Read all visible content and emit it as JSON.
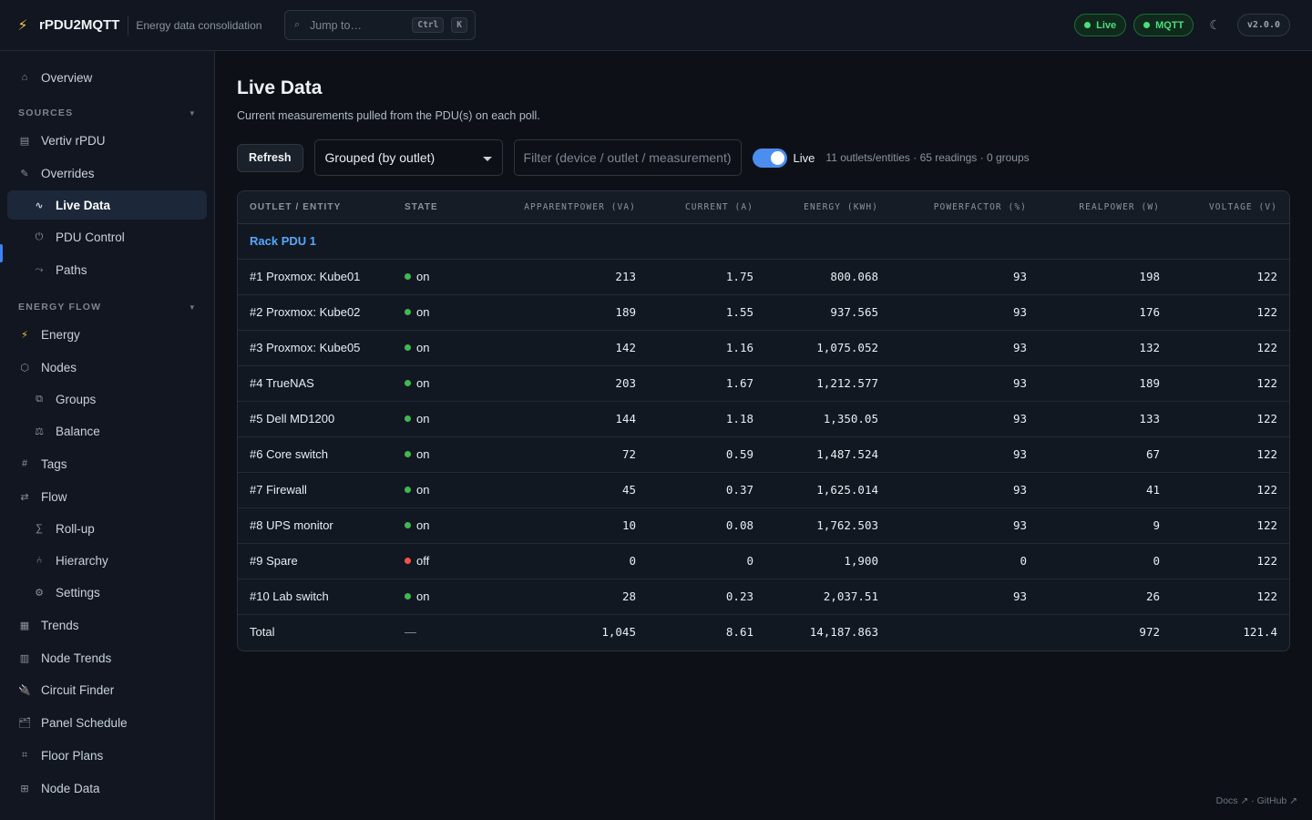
{
  "app": {
    "name": "rPDU2MQTT",
    "subtitle": "Energy data consolidation",
    "search_placeholder": "Jump to…",
    "kbd_ctrl": "Ctrl",
    "kbd_k": "K",
    "status_live": "Live",
    "status_mqtt": "MQTT",
    "version": "v2.0.0",
    "accent": "#3b82f6",
    "status_color": "#4ade80"
  },
  "sidebar": {
    "overview": "Overview",
    "section_sources": "SOURCES",
    "vertiv": "Vertiv rPDU",
    "overrides": "Overrides",
    "live_data": "Live Data",
    "pdu_control": "PDU Control",
    "paths": "Paths",
    "section_energy_flow": "ENERGY FLOW",
    "energy": "Energy",
    "nodes": "Nodes",
    "groups": "Groups",
    "balance": "Balance",
    "tags": "Tags",
    "flow": "Flow",
    "rollup": "Roll-up",
    "hierarchy": "Hierarchy",
    "settings": "Settings",
    "trends": "Trends",
    "node_trends": "Node Trends",
    "circuit_finder": "Circuit Finder",
    "panel_schedule": "Panel Schedule",
    "floor_plans": "Floor Plans",
    "node_data": "Node Data"
  },
  "page": {
    "title": "Live Data",
    "subtitle": "Current measurements pulled from the PDU(s) on each poll.",
    "refresh_label": "Refresh",
    "grouping_value": "Grouped (by outlet)",
    "filter_placeholder": "Filter (device / outlet / measurement)",
    "live_toggle_label": "Live",
    "live_toggle_on": true,
    "stats": "11 outlets/entities · 65 readings · 0 groups"
  },
  "table": {
    "headers": [
      "OUTLET / ENTITY",
      "STATE",
      "APPARENTPOWER (VA)",
      "CURRENT (A)",
      "ENERGY (KWH)",
      "POWERFACTOR (%)",
      "REALPOWER (W)",
      "VOLTAGE (V)"
    ],
    "group_label": "Rack PDU 1",
    "rows": [
      {
        "name": "#1 Proxmox: Kube01",
        "state": "on",
        "apparent": "213",
        "current": "1.75",
        "energy": "800.068",
        "pf": "93",
        "real": "198",
        "voltage": "122"
      },
      {
        "name": "#2 Proxmox: Kube02",
        "state": "on",
        "apparent": "189",
        "current": "1.55",
        "energy": "937.565",
        "pf": "93",
        "real": "176",
        "voltage": "122"
      },
      {
        "name": "#3 Proxmox: Kube05",
        "state": "on",
        "apparent": "142",
        "current": "1.16",
        "energy": "1,075.052",
        "pf": "93",
        "real": "132",
        "voltage": "122"
      },
      {
        "name": "#4 TrueNAS",
        "state": "on",
        "apparent": "203",
        "current": "1.67",
        "energy": "1,212.577",
        "pf": "93",
        "real": "189",
        "voltage": "122"
      },
      {
        "name": "#5 Dell MD1200",
        "state": "on",
        "apparent": "144",
        "current": "1.18",
        "energy": "1,350.05",
        "pf": "93",
        "real": "133",
        "voltage": "122"
      },
      {
        "name": "#6 Core switch",
        "state": "on",
        "apparent": "72",
        "current": "0.59",
        "energy": "1,487.524",
        "pf": "93",
        "real": "67",
        "voltage": "122"
      },
      {
        "name": "#7 Firewall",
        "state": "on",
        "apparent": "45",
        "current": "0.37",
        "energy": "1,625.014",
        "pf": "93",
        "real": "41",
        "voltage": "122"
      },
      {
        "name": "#8 UPS monitor",
        "state": "on",
        "apparent": "10",
        "current": "0.08",
        "energy": "1,762.503",
        "pf": "93",
        "real": "9",
        "voltage": "122"
      },
      {
        "name": "#9 Spare",
        "state": "off",
        "apparent": "0",
        "current": "0",
        "energy": "1,900",
        "pf": "0",
        "real": "0",
        "voltage": "122"
      },
      {
        "name": "#10 Lab switch",
        "state": "on",
        "apparent": "28",
        "current": "0.23",
        "energy": "2,037.51",
        "pf": "93",
        "real": "26",
        "voltage": "122"
      }
    ],
    "total": {
      "name": "Total",
      "state": "—",
      "apparent": "1,045",
      "current": "8.61",
      "energy": "14,187.863",
      "pf": "",
      "real": "972",
      "voltage": "121.4"
    }
  },
  "footer": {
    "links": "Docs ↗ · GitHub ↗"
  }
}
